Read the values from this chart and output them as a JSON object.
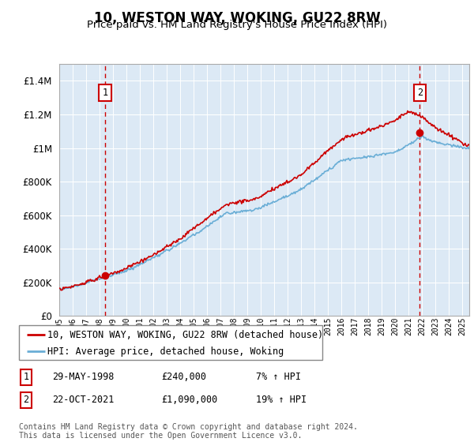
{
  "title": "10, WESTON WAY, WOKING, GU22 8RW",
  "subtitle": "Price paid vs. HM Land Registry's House Price Index (HPI)",
  "plot_bg_color": "#dce9f5",
  "ylim": [
    0,
    1500000
  ],
  "yticks": [
    0,
    200000,
    400000,
    600000,
    800000,
    1000000,
    1200000,
    1400000
  ],
  "ytick_labels": [
    "£0",
    "£200K",
    "£400K",
    "£600K",
    "£800K",
    "£1M",
    "£1.2M",
    "£1.4M"
  ],
  "sale1_date_num": 1998.41,
  "sale1_price": 240000,
  "sale1_label": "1",
  "sale2_date_num": 2021.81,
  "sale2_price": 1090000,
  "sale2_label": "2",
  "hpi_color": "#6aaed6",
  "price_color": "#cc0000",
  "vline_color": "#cc0000",
  "legend_line1": "10, WESTON WAY, WOKING, GU22 8RW (detached house)",
  "legend_line2": "HPI: Average price, detached house, Woking",
  "annotation1_date": "29-MAY-1998",
  "annotation1_price": "£240,000",
  "annotation1_hpi": "7% ↑ HPI",
  "annotation2_date": "22-OCT-2021",
  "annotation2_price": "£1,090,000",
  "annotation2_hpi": "19% ↑ HPI",
  "footnote": "Contains HM Land Registry data © Crown copyright and database right 2024.\nThis data is licensed under the Open Government Licence v3.0.",
  "xmin": 1995.0,
  "xmax": 2025.5
}
